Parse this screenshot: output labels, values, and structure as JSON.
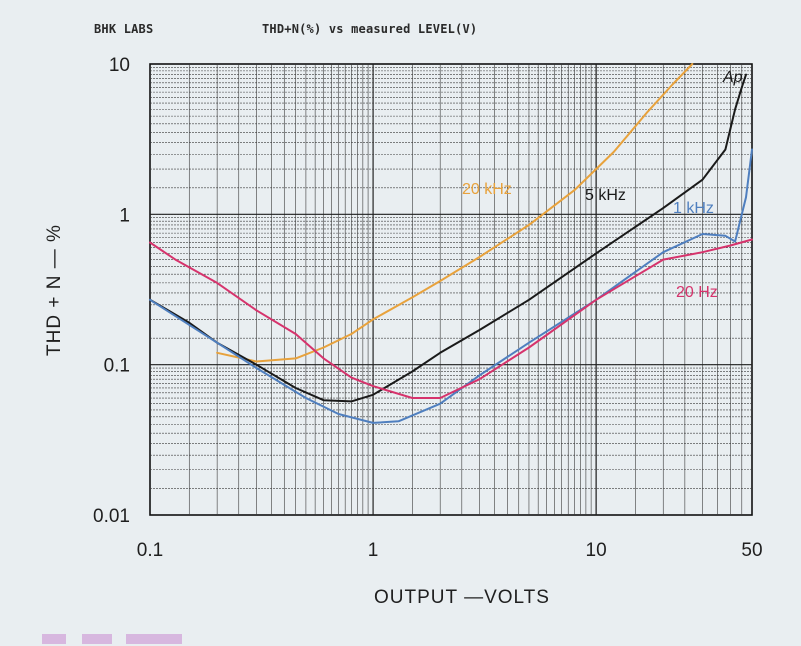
{
  "header": {
    "brand": "BHK LABS",
    "title": "THD+N(%) vs measured LEVEL(V)"
  },
  "chart_data": {
    "type": "line",
    "title": "THD+N(%) vs measured LEVEL(V)",
    "xlabel": "OUTPUT —VOLTS",
    "ylabel": "THD + N — %",
    "x_scale": "log",
    "y_scale": "log",
    "xlim": [
      0.1,
      50
    ],
    "ylim": [
      0.01,
      10
    ],
    "x_ticks": [
      {
        "value": 0.1,
        "label": "0.1"
      },
      {
        "value": 1,
        "label": "1"
      },
      {
        "value": 10,
        "label": "10"
      },
      {
        "value": 50,
        "label": "50"
      }
    ],
    "y_ticks": [
      {
        "value": 10,
        "label": "10"
      },
      {
        "value": 1,
        "label": "1"
      },
      {
        "value": 0.1,
        "label": "0.1"
      },
      {
        "value": 0.01,
        "label": "0.01"
      }
    ],
    "grid": true,
    "corner_mark": "Ap",
    "series": [
      {
        "name": "20 kHz",
        "color": "#e8a23c",
        "x": [
          0.2,
          0.3,
          0.45,
          0.6,
          0.8,
          1.0,
          1.5,
          2,
          3,
          5,
          8,
          12,
          17,
          22,
          27
        ],
        "y": [
          0.12,
          0.105,
          0.11,
          0.13,
          0.16,
          0.2,
          0.28,
          0.36,
          0.52,
          0.85,
          1.45,
          2.6,
          4.8,
          7.3,
          10
        ]
      },
      {
        "name": "5 kHz",
        "color": "#1a1a1a",
        "x": [
          0.1,
          0.15,
          0.2,
          0.3,
          0.45,
          0.6,
          0.8,
          1.0,
          1.5,
          2,
          3,
          5,
          10,
          20,
          30,
          38,
          42,
          45,
          47
        ],
        "y": [
          0.27,
          0.19,
          0.14,
          0.1,
          0.07,
          0.058,
          0.057,
          0.063,
          0.09,
          0.12,
          0.17,
          0.27,
          0.55,
          1.1,
          1.7,
          2.7,
          5,
          7,
          8.5
        ]
      },
      {
        "name": "1 kHz",
        "color": "#4f7fbf",
        "x": [
          0.1,
          0.2,
          0.3,
          0.5,
          0.7,
          1.0,
          1.3,
          2,
          3,
          5,
          10,
          20,
          30,
          38,
          42,
          47,
          50
        ],
        "y": [
          0.27,
          0.14,
          0.095,
          0.06,
          0.047,
          0.041,
          0.042,
          0.055,
          0.085,
          0.14,
          0.27,
          0.56,
          0.74,
          0.72,
          0.66,
          1.3,
          2.7
        ]
      },
      {
        "name": "20 Hz",
        "color": "#d6336c",
        "x": [
          0.1,
          0.13,
          0.2,
          0.3,
          0.45,
          0.6,
          0.8,
          1.0,
          1.5,
          2,
          3,
          5,
          10,
          20,
          30,
          40,
          50
        ],
        "y": [
          0.65,
          0.5,
          0.35,
          0.23,
          0.16,
          0.11,
          0.082,
          0.072,
          0.06,
          0.06,
          0.08,
          0.13,
          0.27,
          0.5,
          0.56,
          0.62,
          0.68
        ]
      }
    ]
  }
}
